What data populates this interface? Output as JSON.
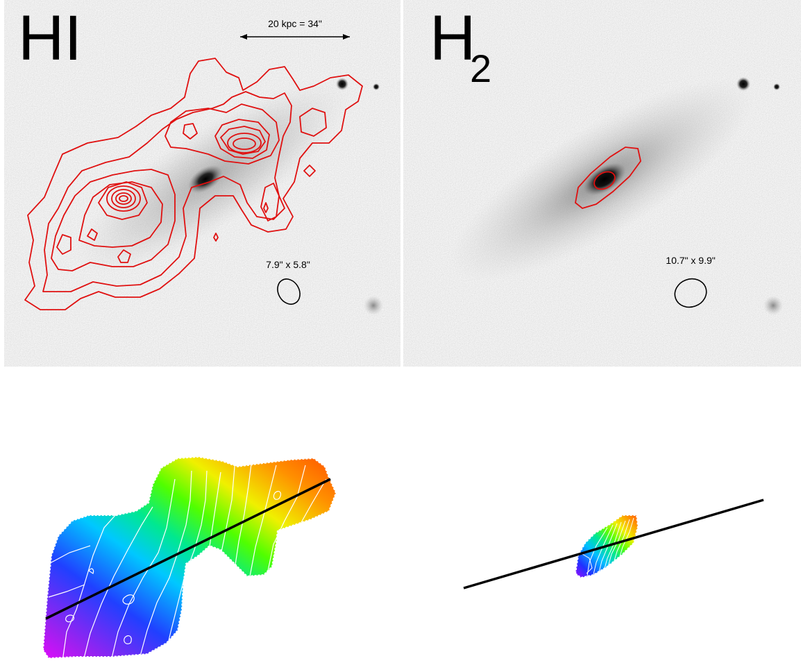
{
  "panels": {
    "hi": {
      "label": "HI",
      "scale_bar_text": "20 kpc = 34\"",
      "beam_text": "7.9\" x 5.8\""
    },
    "h2": {
      "label_main": "H",
      "label_sub": "2",
      "beam_text": "10.7\" x 9.9\""
    }
  },
  "colors": {
    "contour": "#e01010",
    "beam": "#000000",
    "velocity_contour": "#ffffff",
    "axis_line": "#000000",
    "sky_background": "#e6e6e6"
  }
}
